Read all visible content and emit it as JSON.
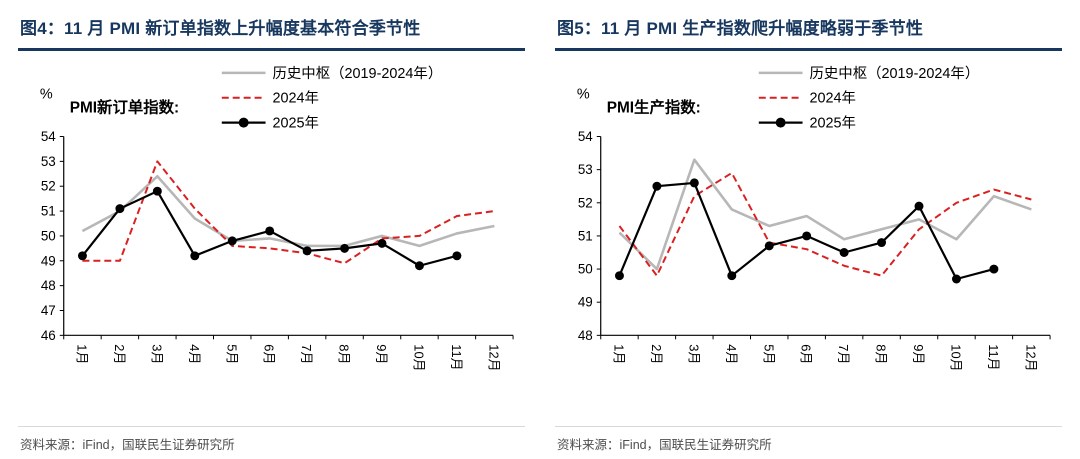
{
  "colors": {
    "title_navy": "#17375e",
    "axis_black": "#000000",
    "hist_gray": "#b7b7b7",
    "red_2024": "#d92121",
    "black_2025": "#000000",
    "source_gray": "#4d4d4d"
  },
  "chart_data": [
    {
      "type": "line",
      "title": "图4：11 月 PMI 新订单指数上升幅度基本符合季节性",
      "inner_label": "PMI新订单指数:",
      "ylabel": "%",
      "ylim": [
        46,
        54
      ],
      "ytick_step": 1,
      "grid": false,
      "legend_position": "top",
      "categories": [
        "1月",
        "2月",
        "3月",
        "4月",
        "5月",
        "6月",
        "7月",
        "8月",
        "9月",
        "10月",
        "11月",
        "12月"
      ],
      "series": [
        {
          "name": "历史中枢（2019-2024年）",
          "color": "#b7b7b7",
          "dash": null,
          "marker": false,
          "width": 2.6,
          "values": [
            50.2,
            51.0,
            52.4,
            50.7,
            49.8,
            49.9,
            49.6,
            49.6,
            50.0,
            49.6,
            50.1,
            50.4
          ]
        },
        {
          "name": "2024年",
          "color": "#d92121",
          "dash": "7 4",
          "marker": false,
          "width": 2,
          "values": [
            49.0,
            49.0,
            53.0,
            51.1,
            49.6,
            49.5,
            49.3,
            48.9,
            49.9,
            50.0,
            50.8,
            51.0
          ]
        },
        {
          "name": "2025年",
          "color": "#000000",
          "dash": null,
          "marker": true,
          "width": 2.2,
          "values": [
            49.2,
            51.1,
            51.8,
            49.2,
            49.8,
            50.2,
            49.4,
            49.5,
            49.7,
            48.8,
            49.2,
            null
          ]
        }
      ],
      "source": "资料来源：iFind，国联民生证券研究所"
    },
    {
      "type": "line",
      "title": "图5：11 月 PMI 生产指数爬升幅度略弱于季节性",
      "inner_label": "PMI生产指数:",
      "ylabel": "%",
      "ylim": [
        48,
        54
      ],
      "ytick_step": 1,
      "grid": false,
      "legend_position": "top",
      "categories": [
        "1月",
        "2月",
        "3月",
        "4月",
        "5月",
        "6月",
        "7月",
        "8月",
        "9月",
        "10月",
        "11月",
        "12月"
      ],
      "series": [
        {
          "name": "历史中枢（2019-2024年）",
          "color": "#b7b7b7",
          "dash": null,
          "marker": false,
          "width": 2.6,
          "values": [
            51.1,
            50.0,
            53.3,
            51.8,
            51.3,
            51.6,
            50.9,
            51.2,
            51.5,
            50.9,
            52.2,
            51.8
          ]
        },
        {
          "name": "2024年",
          "color": "#d92121",
          "dash": "7 4",
          "marker": false,
          "width": 2,
          "values": [
            51.3,
            49.8,
            52.2,
            52.9,
            50.8,
            50.6,
            50.1,
            49.8,
            51.2,
            52.0,
            52.4,
            52.1
          ]
        },
        {
          "name": "2025年",
          "color": "#000000",
          "dash": null,
          "marker": true,
          "width": 2.2,
          "values": [
            49.8,
            52.5,
            52.6,
            49.8,
            50.7,
            51.0,
            50.5,
            50.8,
            51.9,
            49.7,
            50.0,
            null
          ]
        }
      ],
      "source": "资料来源：iFind，国联民生证券研究所"
    }
  ]
}
